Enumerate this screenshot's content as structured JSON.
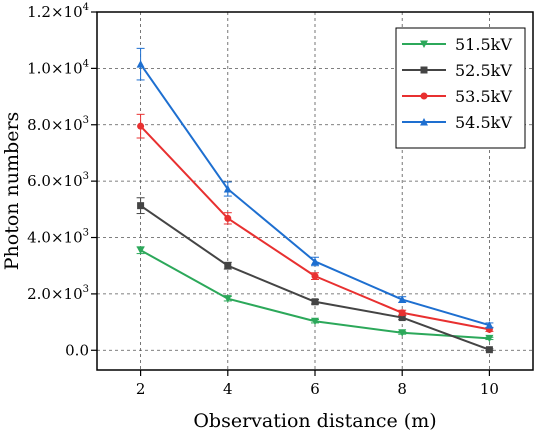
{
  "chart_data": {
    "type": "line",
    "xlabel": "Observation distance (m)",
    "ylabel": "Photon numbers",
    "x": [
      2,
      4,
      6,
      8,
      10
    ],
    "xlim": [
      1,
      11
    ],
    "ylim": [
      -700,
      12000
    ],
    "x_ticks": [
      2,
      4,
      6,
      8,
      10
    ],
    "x_tick_labels": [
      "2",
      "4",
      "6",
      "8",
      "10"
    ],
    "y_ticks": [
      0,
      2000,
      4000,
      6000,
      8000,
      10000,
      12000
    ],
    "y_tick_mantissas": [
      "0.0",
      "2.0×10",
      "4.0×10",
      "6.0×10",
      "8.0×10",
      "1.0×10",
      "1.2×10"
    ],
    "y_tick_exponents": [
      "",
      "3",
      "3",
      "3",
      "3",
      "4",
      "4"
    ],
    "grid": true,
    "grid_style": "dashed",
    "legend_position": "top-right",
    "series": [
      {
        "name": "51.5kV",
        "color": "#2ca85a",
        "marker": "triangle-down",
        "values": [
          3550,
          1830,
          1030,
          620,
          420
        ],
        "errors": [
          120,
          80,
          60,
          50,
          40
        ]
      },
      {
        "name": "52.5kV",
        "color": "#444444",
        "marker": "square",
        "values": [
          5130,
          3000,
          1720,
          1160,
          20
        ],
        "errors": [
          280,
          120,
          80,
          70,
          30
        ]
      },
      {
        "name": "53.5kV",
        "color": "#e83030",
        "marker": "circle",
        "values": [
          7950,
          4680,
          2630,
          1330,
          740
        ],
        "errors": [
          420,
          200,
          120,
          90,
          70
        ]
      },
      {
        "name": "54.5kV",
        "color": "#1e6fd0",
        "marker": "triangle-up",
        "values": [
          10150,
          5720,
          3150,
          1800,
          890
        ],
        "errors": [
          560,
          250,
          150,
          100,
          80
        ]
      }
    ]
  }
}
